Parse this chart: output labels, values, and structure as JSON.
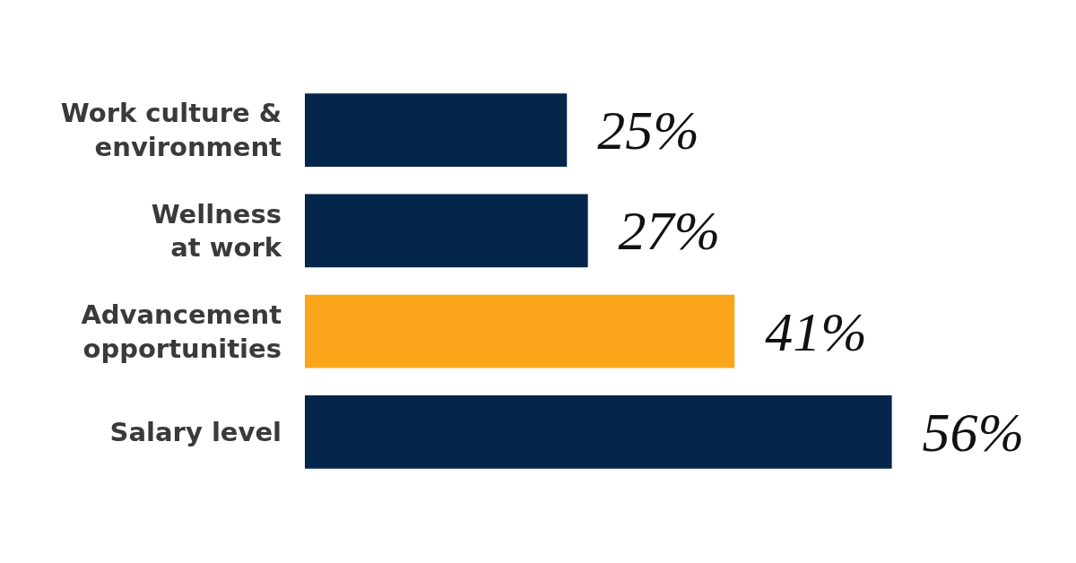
{
  "chart_data": {
    "type": "bar",
    "orientation": "horizontal",
    "categories": [
      "Work culture & environment",
      "Wellness at work",
      "Advancement opportunities",
      "Salary level"
    ],
    "values": [
      25,
      27,
      41,
      56
    ],
    "colors": [
      "#04264a",
      "#04264a",
      "#fba61a",
      "#04264a"
    ],
    "value_labels": [
      "25%",
      "27%",
      "41%",
      "56%"
    ],
    "grid": false,
    "legend": false
  }
}
